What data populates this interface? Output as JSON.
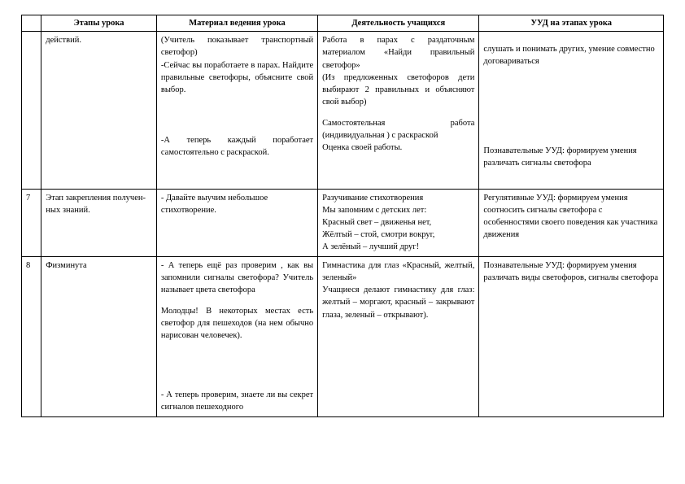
{
  "headers": {
    "c0": "",
    "c1": "Этапы урока",
    "c2": "Материал ведения урока",
    "c3": "Деятельность учащихся",
    "c4": "УУД на этапах урока"
  },
  "rows": [
    {
      "num": "",
      "stage": "действий.",
      "material_a": "(Учитель показывает транспортный светофор)",
      "material_b": "-Сейчас вы поработаете в парах. Найдите правильные светофоры, объясните свой выбор.",
      "material_c": "-А теперь каждый поработает самостоятельно с раскраской.",
      "activity_a": "Работа в парах с раздаточным материалом «Найди правильный светофор»",
      "activity_b": "(Из предложенных светофоров дети выбирают 2 правильных и объясняют свой выбор)",
      "activity_c": "Самостоятельная работа (индивидуальная ) с раскраской",
      "activity_d": "Оценка своей работы.",
      "uud_a": "слушать и понимать других, умение совместно договариваться",
      "uud_b": "Познавательные УУД: формируем умения различать сигналы светофора"
    },
    {
      "num": "7",
      "stage_a": "Этап закрепления получен-",
      "stage_b": "ных знаний.",
      "material": "- Давайте выучим небольшое стихотворение.",
      "activity_a": "Разучивание стихотворения",
      "activity_b": "Мы запомним с детских лет:",
      "activity_c": "Красный свет – движенья нет,",
      "activity_d": "Жёлтый – стой, смотри вокруг,",
      "activity_e": "А зелёный – лучший друг!",
      "uud_a": "Регулятивные УУД: формируем умения соотносить сигналы светофора с особенностями своего поведения как участника движения"
    },
    {
      "num": "8",
      "stage": "Физминута",
      "material_a": "- А теперь ещё раз проверим , как вы запомнили сигналы светофора? Учитель называет цвета светофора",
      "material_b": "Молодцы! В некоторых местах есть светофор для пешеходов (на нем обычно нарисован человечек).",
      "material_c": "- А теперь проверим, знаете ли вы секрет сигналов пешеходного",
      "activity_a": "Гимнастика для глаз «Красный, желтый, зеленый»",
      "activity_b": " Учащиеся делают гимнастику для глаз: желтый – моргают, красный – закрывают глаза, зеленый – открывают).",
      "uud_a": "Познавательные УУД: формируем умения различать виды светофоров, сигналы светофора"
    }
  ]
}
